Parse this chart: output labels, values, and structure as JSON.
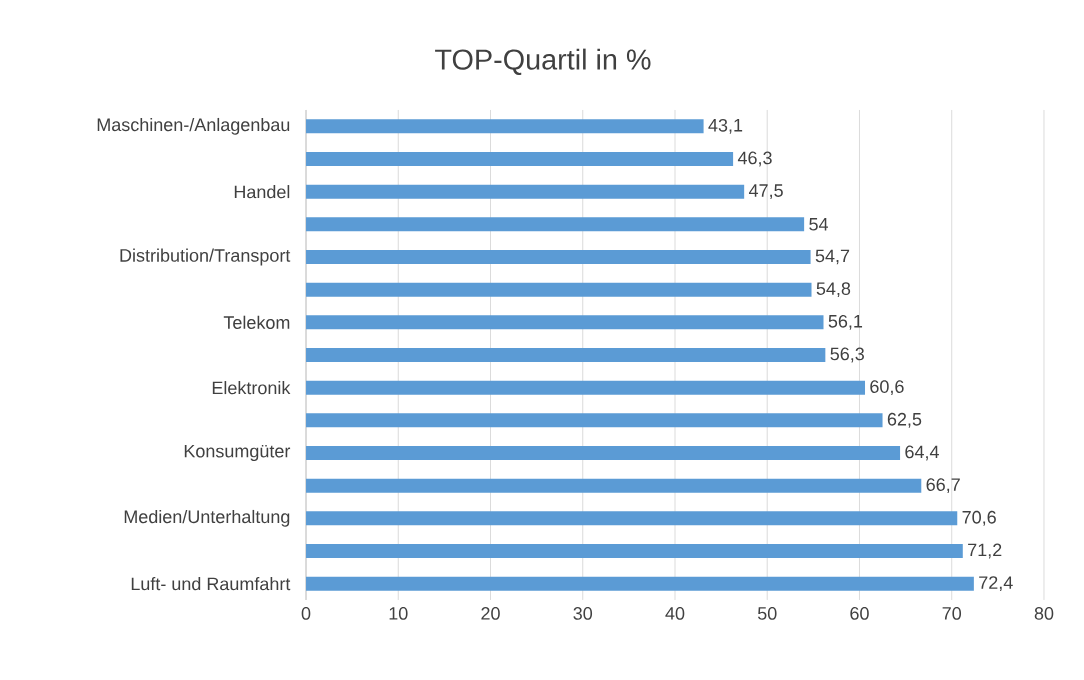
{
  "chart_data": {
    "type": "bar",
    "orientation": "horizontal",
    "title": "TOP-Quartil in %",
    "categories": [
      "Maschinen-/Anlagenbau",
      null,
      "Handel",
      null,
      "Distribution/Transport",
      null,
      "Telekom",
      null,
      "Elektronik",
      null,
      "Konsumgüter",
      null,
      "Medien/Unterhaltung",
      null,
      "Luft- und Raumfahrt"
    ],
    "values": [
      43.1,
      46.3,
      47.5,
      54,
      54.7,
      54.8,
      56.1,
      56.3,
      60.6,
      62.5,
      64.4,
      66.7,
      70.6,
      71.2,
      72.4
    ],
    "value_labels": [
      "43,1",
      "46,3",
      "47,5",
      "54",
      "54,7",
      "54,8",
      "56,1",
      "56,3",
      "60,6",
      "62,5",
      "64,4",
      "66,7",
      "70,6",
      "71,2",
      "72,4"
    ],
    "color": "#5b9bd5",
    "xlim": [
      0,
      80
    ],
    "xticks": [
      0,
      10,
      20,
      30,
      40,
      50,
      60,
      70,
      80
    ],
    "grid": "x"
  }
}
